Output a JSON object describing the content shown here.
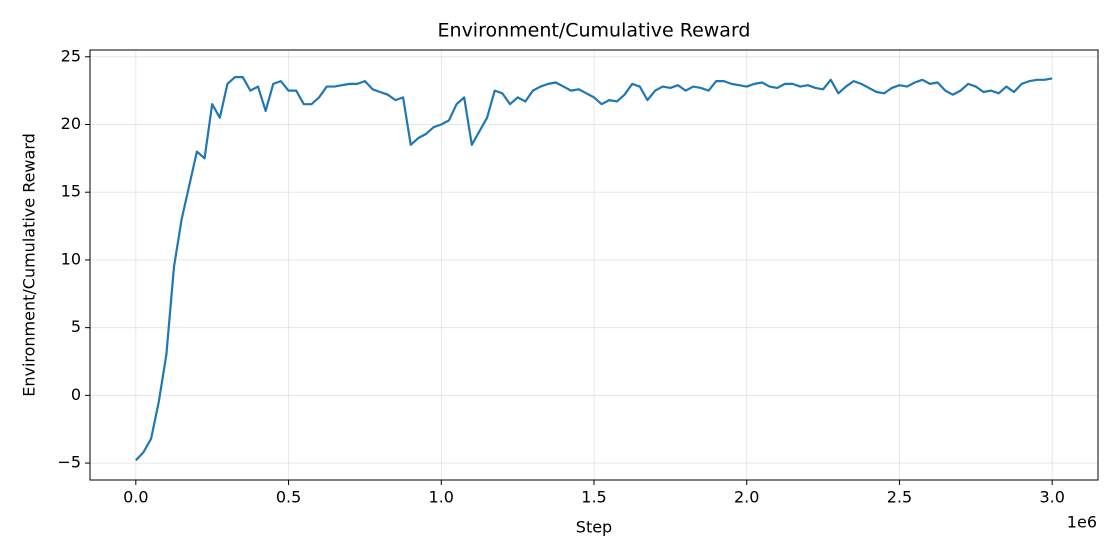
{
  "chart_data": {
    "type": "line",
    "title": "Environment/Cumulative Reward",
    "x_label": "Step",
    "y_label": "Environment/Cumulative Reward",
    "x_offset_label": "1e6",
    "color": "#1f77b4",
    "grid": true,
    "xlim": [
      -150000,
      3150000
    ],
    "xticks": [
      {
        "value": 0,
        "label": "0.0"
      },
      {
        "value": 500000,
        "label": "0.5"
      },
      {
        "value": 1000000,
        "label": "1.0"
      },
      {
        "value": 1500000,
        "label": "1.5"
      },
      {
        "value": 2000000,
        "label": "2.0"
      },
      {
        "value": 2500000,
        "label": "2.5"
      },
      {
        "value": 3000000,
        "label": "3.0"
      }
    ],
    "ylim": [
      -6.25,
      25.5
    ],
    "yticks": [
      {
        "value": -5,
        "label": "−5"
      },
      0,
      5,
      10,
      15,
      20,
      25
    ],
    "x": [
      0,
      25000,
      50000,
      75000,
      100000,
      125000,
      150000,
      175000,
      200000,
      225000,
      250000,
      275000,
      300000,
      325000,
      350000,
      375000,
      400000,
      425000,
      450000,
      475000,
      500000,
      525000,
      550000,
      575000,
      600000,
      625000,
      650000,
      675000,
      700000,
      725000,
      750000,
      775000,
      800000,
      825000,
      850000,
      875000,
      900000,
      925000,
      950000,
      975000,
      1000000,
      1025000,
      1050000,
      1075000,
      1100000,
      1125000,
      1150000,
      1175000,
      1200000,
      1225000,
      1250000,
      1275000,
      1300000,
      1325000,
      1350000,
      1375000,
      1400000,
      1425000,
      1450000,
      1475000,
      1500000,
      1525000,
      1550000,
      1575000,
      1600000,
      1625000,
      1650000,
      1675000,
      1700000,
      1725000,
      1750000,
      1775000,
      1800000,
      1825000,
      1850000,
      1875000,
      1900000,
      1925000,
      1950000,
      1975000,
      2000000,
      2025000,
      2050000,
      2075000,
      2100000,
      2125000,
      2150000,
      2175000,
      2200000,
      2225000,
      2250000,
      2275000,
      2300000,
      2325000,
      2350000,
      2375000,
      2400000,
      2425000,
      2450000,
      2475000,
      2500000,
      2525000,
      2550000,
      2575000,
      2600000,
      2625000,
      2650000,
      2675000,
      2700000,
      2725000,
      2750000,
      2775000,
      2800000,
      2825000,
      2850000,
      2875000,
      2900000,
      2925000,
      2950000,
      2975000,
      3000000
    ],
    "values": [
      -4.8,
      -4.2,
      -3.2,
      -0.5,
      3,
      9.5,
      13,
      15.5,
      18,
      17.5,
      21.5,
      20.5,
      23,
      23.5,
      23.5,
      22.5,
      22.8,
      21,
      23,
      23.2,
      22.5,
      22.5,
      21.5,
      21.5,
      22,
      22.8,
      22.8,
      22.9,
      23,
      23,
      23.2,
      22.6,
      22.4,
      22.2,
      21.8,
      22,
      18.5,
      19,
      19.3,
      19.8,
      20,
      20.3,
      21.5,
      22,
      18.5,
      19.5,
      20.5,
      22.5,
      22.3,
      21.5,
      22,
      21.7,
      22.5,
      22.8,
      23,
      23.1,
      22.8,
      22.5,
      22.6,
      22.3,
      22,
      21.5,
      21.8,
      21.7,
      22.2,
      23,
      22.8,
      21.8,
      22.5,
      22.8,
      22.7,
      22.9,
      22.5,
      22.8,
      22.7,
      22.5,
      23.2,
      23.2,
      23,
      22.9,
      22.8,
      23,
      23.1,
      22.8,
      22.7,
      23,
      23,
      22.8,
      22.9,
      22.7,
      22.6,
      23.3,
      22.3,
      22.8,
      23.2,
      23,
      22.7,
      22.4,
      22.3,
      22.7,
      22.9,
      22.8,
      23.1,
      23.3,
      23,
      23.1,
      22.5,
      22.2,
      22.5,
      23,
      22.8,
      22.4,
      22.5,
      22.3,
      22.8,
      22.4,
      23,
      23.2,
      23.3,
      23.3,
      23.4
    ]
  }
}
